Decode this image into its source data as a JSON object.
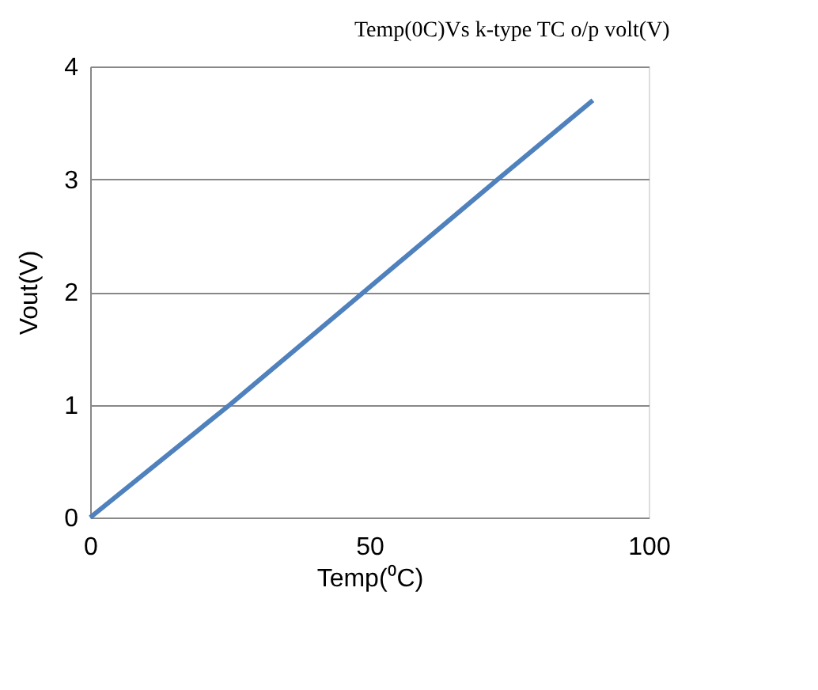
{
  "chart_data": {
    "type": "line",
    "title": "Temp(0C)Vs k-type TC o/p volt(V)",
    "xlabel": "Temp(⁰C)",
    "ylabel": "Vout(V)",
    "x": [
      0,
      25,
      49,
      73,
      90
    ],
    "series": [
      {
        "color": "#4f81bd",
        "values": [
          0,
          1,
          2,
          3,
          3.7
        ]
      }
    ],
    "xlim": [
      0,
      100
    ],
    "xticks": [
      0,
      50,
      100
    ],
    "ylim": [
      0,
      4
    ],
    "yticks": [
      0,
      1,
      2,
      3,
      4
    ],
    "grid": "y",
    "legend": false,
    "marker": "none",
    "line_style": "solid"
  }
}
